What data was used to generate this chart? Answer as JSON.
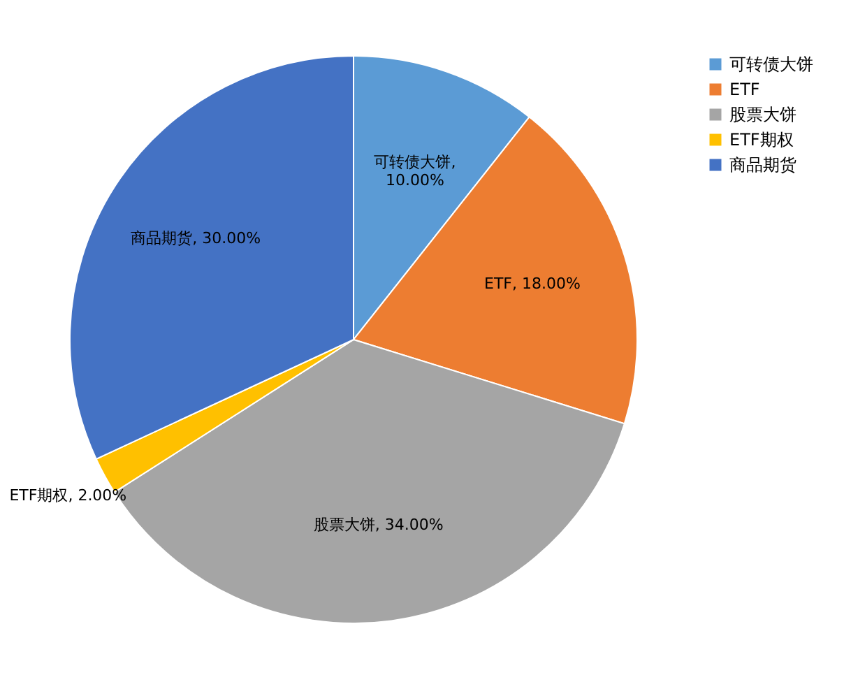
{
  "chart_data": {
    "type": "pie",
    "categories": [
      "可转债大饼",
      "ETF",
      "股票大饼",
      "ETF期权",
      "商品期货"
    ],
    "values": [
      10,
      18,
      34,
      2,
      30
    ],
    "value_labels": [
      "可转债大饼, 10.00%",
      "ETF, 18.00%",
      "股票大饼, 34.00%",
      "ETF期权, 2.00%",
      "商品期货, 30.00%"
    ],
    "colors": [
      "#5b9bd5",
      "#ed7d31",
      "#a5a5a5",
      "#ffc000",
      "#4472c4"
    ],
    "legend": "right"
  }
}
